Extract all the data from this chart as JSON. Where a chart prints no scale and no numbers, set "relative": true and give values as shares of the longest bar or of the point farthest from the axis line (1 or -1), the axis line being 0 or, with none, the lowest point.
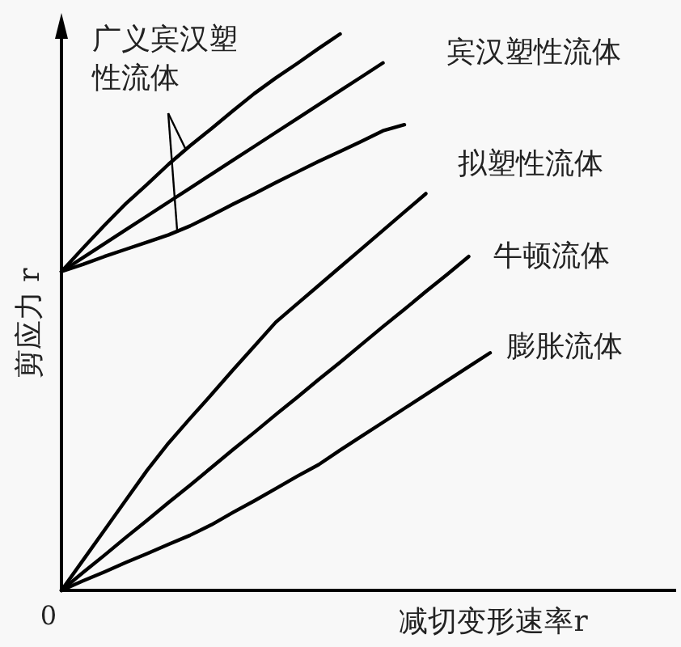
{
  "chart_data": {
    "type": "line",
    "relative": true,
    "xlabel": "减切变形速率r",
    "ylabel": "剪应力 r",
    "annotations": [
      "0"
    ],
    "categories": [
      null,
      null,
      null,
      null,
      null,
      null,
      null,
      null,
      null,
      null,
      null,
      null,
      null,
      null,
      null,
      null,
      null,
      null,
      null,
      null,
      null
    ],
    "series": [
      {
        "name": "广义宾汉塑性流体",
        "color": "#000000",
        "values": [
          0.573,
          0.615,
          0.656,
          0.695,
          0.73,
          0.766,
          0.799,
          0.83,
          0.862,
          0.893,
          0.921,
          0.947,
          0.974,
          1.0,
          null,
          null,
          null,
          null,
          null,
          null,
          null
        ]
      },
      {
        "name": "宾汉塑性流体",
        "color": "#000000",
        "values": [
          0.573,
          0.598,
          0.623,
          0.648,
          0.673,
          0.698,
          0.723,
          0.748,
          0.773,
          0.798,
          0.823,
          0.848,
          0.873,
          0.898,
          0.923,
          0.948,
          null,
          null,
          null,
          null,
          null
        ]
      },
      {
        "color": "#000000",
        "values": [
          0.573,
          0.586,
          0.6,
          0.613,
          0.626,
          0.639,
          0.655,
          0.674,
          0.694,
          0.713,
          0.733,
          0.752,
          0.771,
          0.789,
          0.807,
          0.826,
          0.837,
          null,
          null,
          null,
          null
        ]
      },
      {
        "name": "拟塑性流体",
        "color": "#000000",
        "values": [
          0,
          0.054,
          0.108,
          0.162,
          0.216,
          0.265,
          0.309,
          0.352,
          0.396,
          0.439,
          0.482,
          0.515,
          0.548,
          0.581,
          0.614,
          0.647,
          0.68,
          0.713,
          null,
          null,
          null
        ]
      },
      {
        "name": "牛顿流体",
        "color": "#000000",
        "values": [
          0,
          0.032,
          0.063,
          0.095,
          0.126,
          0.158,
          0.189,
          0.221,
          0.253,
          0.284,
          0.316,
          0.347,
          0.379,
          0.41,
          0.442,
          0.474,
          0.505,
          0.537,
          0.568,
          0.6,
          null
        ]
      },
      {
        "name": "膨胀流体",
        "color": "#000000",
        "values": [
          0,
          0.017,
          0.033,
          0.05,
          0.066,
          0.083,
          0.099,
          0.118,
          0.14,
          0.161,
          0.183,
          0.205,
          0.226,
          0.252,
          0.277,
          0.302,
          0.327,
          0.352,
          0.377,
          0.402,
          0.427
        ]
      }
    ]
  }
}
